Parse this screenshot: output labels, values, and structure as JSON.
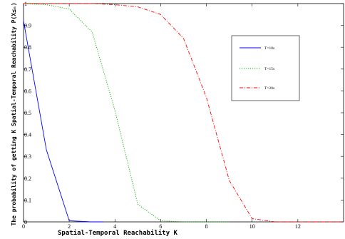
{
  "chart_data": {
    "type": "line",
    "xlabel": "Spatial-Temporal Reachability K",
    "ylabel": "The probability of getting K Spatial-Temporal Reachability P(X≤ₙ)",
    "xlim": [
      0,
      14
    ],
    "ylim": [
      0,
      1
    ],
    "x_ticks": [
      0,
      2,
      4,
      6,
      8,
      10,
      12
    ],
    "y_ticks": [
      0,
      0.1,
      0.2,
      0.3,
      0.4,
      0.5,
      0.6,
      0.7,
      0.8,
      0.9,
      1
    ],
    "x_tick_labels": [
      "0",
      "2",
      "4",
      "6",
      "8",
      "10",
      "12"
    ],
    "y_tick_labels": [
      "0",
      "0.1",
      "0.2",
      "0.3",
      "0.4",
      "0.5",
      "0.6",
      "0.7",
      "0.8",
      "0.9",
      "1"
    ],
    "grid": false,
    "legend_position": "upper-right",
    "series": [
      {
        "name": "T=10s",
        "color": "#0000ff",
        "style": "solid",
        "points": [
          [
            0,
            0.92
          ],
          [
            1,
            0.33
          ],
          [
            2,
            0.005
          ],
          [
            3,
            0.0
          ],
          [
            3.5,
            0.0
          ]
        ]
      },
      {
        "name": "T=15s",
        "color": "#00aa00",
        "style": "dotted",
        "points": [
          [
            0,
            1.0
          ],
          [
            1,
            0.995
          ],
          [
            2,
            0.975
          ],
          [
            3,
            0.87
          ],
          [
            4,
            0.51
          ],
          [
            5,
            0.08
          ],
          [
            6,
            0.005
          ],
          [
            7,
            0.0
          ],
          [
            9,
            0.0
          ]
        ]
      },
      {
        "name": "T=20s",
        "color": "#ff0000",
        "style": "dashdot",
        "points": [
          [
            0,
            1.0
          ],
          [
            3,
            1.0
          ],
          [
            4,
            0.995
          ],
          [
            5,
            0.985
          ],
          [
            6,
            0.95
          ],
          [
            7,
            0.84
          ],
          [
            8,
            0.57
          ],
          [
            9,
            0.19
          ],
          [
            10,
            0.015
          ],
          [
            11,
            0.0
          ],
          [
            14,
            0.0
          ]
        ]
      }
    ]
  }
}
